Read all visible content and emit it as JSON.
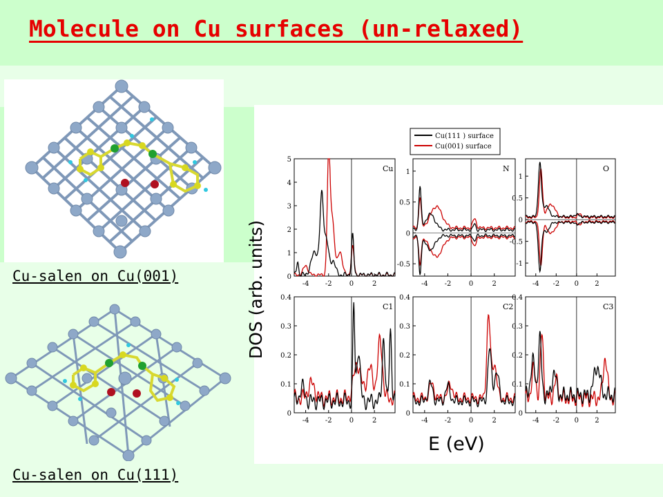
{
  "slide": {
    "title": "Molecule on Cu surfaces (un-relaxed)",
    "caption_top": "Cu-salen on Cu(001)",
    "caption_bottom": "Cu-salen on Cu(111)"
  },
  "chart_data": {
    "type": "line",
    "ylabel": "DOS (arb. units)",
    "xlabel": "E (eV)",
    "legend": [
      "Cu(111 ) surface",
      "Cu(001) surface"
    ],
    "legend_colors": [
      "#000000",
      "#cc0000"
    ],
    "panels": [
      {
        "label": "Cu",
        "xlim": [
          -5,
          3.8
        ],
        "ylim": [
          0,
          5
        ],
        "yticks": [
          "0",
          "1",
          "2",
          "3",
          "4",
          "5"
        ],
        "xticks": [
          "-4",
          "-2",
          "0",
          "2"
        ]
      },
      {
        "label": "N",
        "xlim": [
          -5,
          3.8
        ],
        "ylim": [
          -0.7,
          1.2
        ],
        "yticks": [
          "-0.5",
          "0",
          "0.5",
          "1"
        ],
        "xticks": [
          "-4",
          "-2",
          "0",
          "2"
        ]
      },
      {
        "label": "O",
        "xlim": [
          -5,
          3.8
        ],
        "ylim": [
          -1.3,
          1.4
        ],
        "yticks": [
          "-1",
          "-0.5",
          "0",
          "0.5",
          "1"
        ],
        "xticks": [
          "-4",
          "-2",
          "0",
          "2"
        ]
      },
      {
        "label": "C1",
        "xlim": [
          -5,
          3.8
        ],
        "ylim": [
          0,
          0.4
        ],
        "yticks": [
          "0",
          "0.1",
          "0.2",
          "0.3",
          "0.4"
        ],
        "xticks": [
          "-4",
          "-2",
          "0",
          "2"
        ]
      },
      {
        "label": "C2",
        "xlim": [
          -5,
          3.8
        ],
        "ylim": [
          0,
          0.4
        ],
        "yticks": [
          "0",
          "0.1",
          "0.2",
          "0.3",
          "0.4"
        ],
        "xticks": [
          "-4",
          "-2",
          "0",
          "2"
        ]
      },
      {
        "label": "C3",
        "xlim": [
          -5,
          3.8
        ],
        "ylim": [
          0,
          0.4
        ],
        "yticks": [
          "0",
          "0.1",
          "0.2",
          "0.3",
          "0.4"
        ],
        "xticks": [
          "-4",
          "-2",
          "0",
          "2"
        ]
      }
    ]
  }
}
